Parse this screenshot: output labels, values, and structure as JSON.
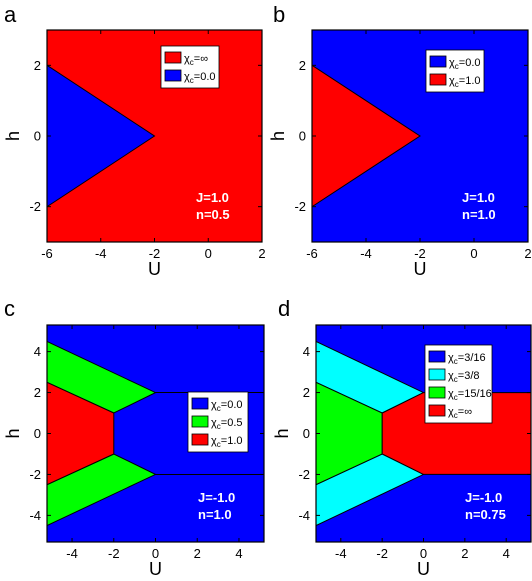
{
  "colors": {
    "red": "#ff0000",
    "blue": "#0000ff",
    "green": "#00ff00",
    "cyan": "#00ffff"
  },
  "chart_data": [
    {
      "type": "area",
      "panel_label": "a",
      "xlabel": "U",
      "ylabel": "h",
      "xlim": [
        -6,
        2
      ],
      "ylim": [
        -3,
        3
      ],
      "xticks": [
        -6,
        -4,
        -2,
        0,
        2
      ],
      "yticks": [
        -2,
        0,
        2
      ],
      "xtick_labels": [
        "-6",
        "-4",
        "-2",
        "0",
        "2"
      ],
      "ytick_labels": [
        "-2",
        "0",
        "2"
      ],
      "background_color": "red",
      "regions": [
        {
          "color": "blue",
          "points": [
            [
              -6,
              2
            ],
            [
              -2,
              0
            ],
            [
              -6,
              -2
            ]
          ]
        }
      ],
      "lines": [],
      "legend": [
        {
          "color": "red",
          "label": "χc=∞"
        },
        {
          "color": "blue",
          "label": "χc=0.0"
        }
      ],
      "legend_position": "top-right",
      "params": [
        "J=1.0",
        "n=0.5"
      ]
    },
    {
      "type": "area",
      "panel_label": "b",
      "xlabel": "U",
      "ylabel": "h",
      "xlim": [
        -6,
        2
      ],
      "ylim": [
        -3,
        3
      ],
      "xticks": [
        -6,
        -4,
        -2,
        0,
        2
      ],
      "yticks": [
        -2,
        0,
        2
      ],
      "xtick_labels": [
        "-6",
        "-4",
        "-2",
        "0",
        "2"
      ],
      "ytick_labels": [
        "-2",
        "0",
        "2"
      ],
      "background_color": "blue",
      "regions": [
        {
          "color": "red",
          "points": [
            [
              -6,
              2
            ],
            [
              -2,
              0
            ],
            [
              -6,
              -2
            ]
          ]
        }
      ],
      "lines": [],
      "legend": [
        {
          "color": "blue",
          "label": "χc=0.0"
        },
        {
          "color": "red",
          "label": "χc=1.0"
        }
      ],
      "legend_position": "top-right",
      "params": [
        "J=1.0",
        "n=1.0"
      ]
    },
    {
      "type": "area",
      "panel_label": "c",
      "xlabel": "U",
      "ylabel": "h",
      "xlim": [
        -5.2,
        5.2
      ],
      "ylim": [
        -5.3,
        5.3
      ],
      "xticks": [
        -4,
        -2,
        0,
        2,
        4
      ],
      "yticks": [
        -4,
        -2,
        0,
        2,
        4
      ],
      "xtick_labels": [
        "-4",
        "-2",
        "0",
        "2",
        "4"
      ],
      "ytick_labels": [
        "-4",
        "-2",
        "0",
        "2",
        "4"
      ],
      "background_color": "blue",
      "regions": [
        {
          "color": "green",
          "points": [
            [
              -5.2,
              4.5
            ],
            [
              0,
              2
            ],
            [
              -2,
              1
            ],
            [
              -5.2,
              2.5
            ]
          ]
        },
        {
          "color": "green",
          "points": [
            [
              -5.2,
              -4.5
            ],
            [
              0,
              -2
            ],
            [
              -2,
              -1
            ],
            [
              -5.2,
              -2.5
            ]
          ]
        },
        {
          "color": "red",
          "points": [
            [
              -5.2,
              2.5
            ],
            [
              -2,
              1
            ],
            [
              -2,
              -1
            ],
            [
              -5.2,
              -2.5
            ]
          ]
        }
      ],
      "lines": [
        [
          [
            0,
            2
          ],
          [
            5.2,
            2
          ]
        ],
        [
          [
            0,
            -2
          ],
          [
            5.2,
            -2
          ]
        ]
      ],
      "legend": [
        {
          "color": "blue",
          "label": "χc=0.0"
        },
        {
          "color": "green",
          "label": "χc=0.5"
        },
        {
          "color": "red",
          "label": "χc=1.0"
        }
      ],
      "legend_position": "center-right",
      "params": [
        "J=-1.0",
        "n=1.0"
      ]
    },
    {
      "type": "area",
      "panel_label": "d",
      "xlabel": "U",
      "ylabel": "h",
      "xlim": [
        -5.2,
        5.2
      ],
      "ylim": [
        -5.3,
        5.3
      ],
      "xticks": [
        -4,
        -2,
        0,
        2,
        4
      ],
      "yticks": [
        -4,
        -2,
        0,
        2,
        4
      ],
      "xtick_labels": [
        "-4",
        "-2",
        "0",
        "2",
        "4"
      ],
      "ytick_labels": [
        "-4",
        "-2",
        "0",
        "2",
        "4"
      ],
      "background_color": "blue",
      "regions": [
        {
          "color": "cyan",
          "points": [
            [
              -5.2,
              4.5
            ],
            [
              0,
              2
            ],
            [
              -2,
              1
            ],
            [
              -5.2,
              2.5
            ]
          ]
        },
        {
          "color": "cyan",
          "points": [
            [
              -5.2,
              -4.5
            ],
            [
              0,
              -2
            ],
            [
              -2,
              -1
            ],
            [
              -5.2,
              -2.5
            ]
          ]
        },
        {
          "color": "green",
          "points": [
            [
              -5.2,
              2.5
            ],
            [
              -2,
              1
            ],
            [
              -2,
              -1
            ],
            [
              -5.2,
              -2.5
            ]
          ]
        },
        {
          "color": "red",
          "points": [
            [
              -2,
              1
            ],
            [
              0,
              2
            ],
            [
              5.2,
              2
            ],
            [
              5.2,
              -2
            ],
            [
              0,
              -2
            ],
            [
              -2,
              -1
            ]
          ]
        }
      ],
      "lines": [],
      "legend": [
        {
          "color": "blue",
          "label": "χc=3/16"
        },
        {
          "color": "cyan",
          "label": "χc=3/8"
        },
        {
          "color": "green",
          "label": "χc=15/16"
        },
        {
          "color": "red",
          "label": "χc=∞"
        }
      ],
      "legend_position": "top-right",
      "params": [
        "J=-1.0",
        "n=0.75"
      ]
    }
  ]
}
